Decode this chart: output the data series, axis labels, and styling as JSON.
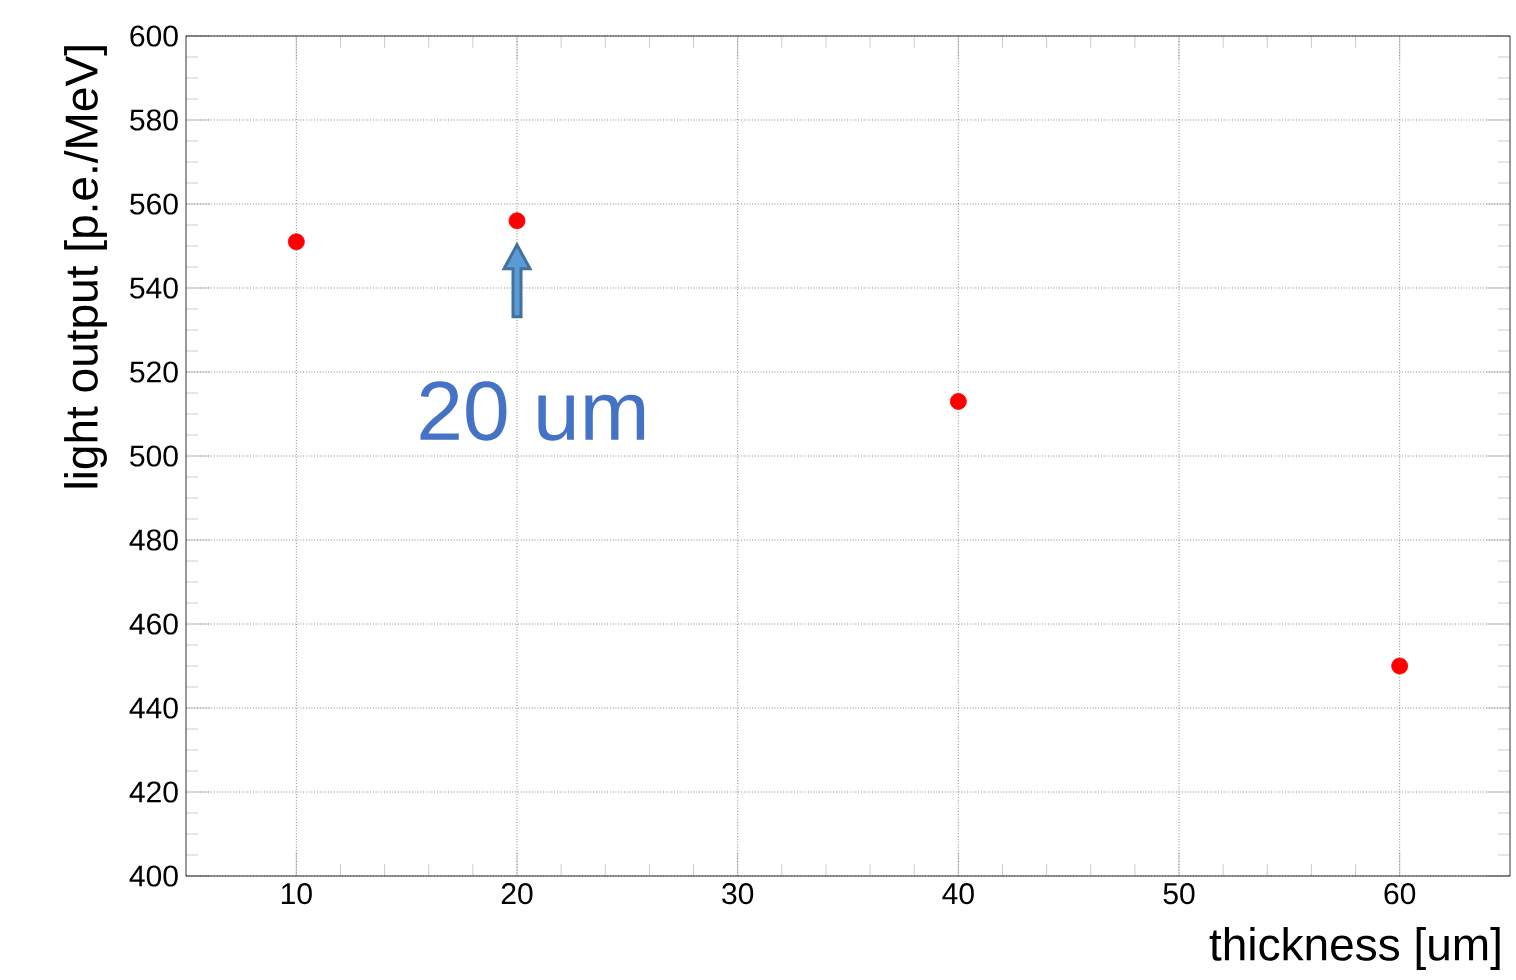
{
  "chart_data": {
    "type": "scatter",
    "xlabel": "thickness [um]",
    "ylabel": "light output [p.e./MeV]",
    "x": [
      10,
      20,
      40,
      60
    ],
    "series": [
      {
        "color": "#ff0000",
        "values": [
          551,
          556,
          513,
          450
        ]
      }
    ],
    "xlim": [
      5,
      65
    ],
    "xticks": [
      10,
      20,
      30,
      40,
      50,
      60
    ],
    "ylim": [
      400,
      600
    ],
    "yticks": [
      400,
      420,
      440,
      460,
      480,
      500,
      520,
      540,
      560,
      580,
      600
    ],
    "grid": true,
    "marker": "circle",
    "annotations": [
      {
        "text": "20 um",
        "x": 20,
        "y": 556
      }
    ]
  }
}
